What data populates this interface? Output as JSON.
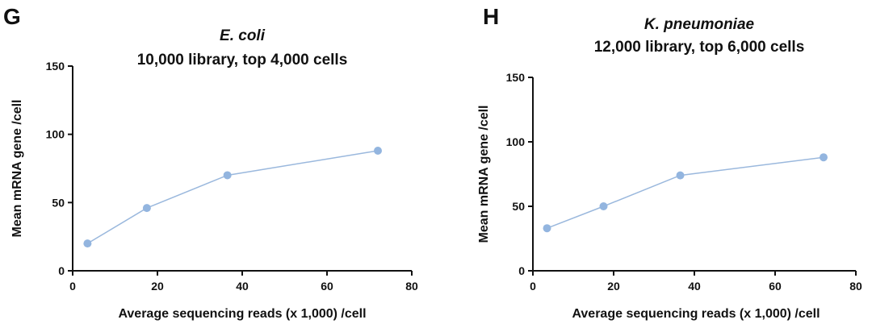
{
  "chart_data": [
    {
      "type": "line",
      "panel": "G",
      "title_organism": "E. coli",
      "title": "10,000 library, top 4,000 cells",
      "xlabel": "Average sequencing reads (x 1,000) /cell",
      "ylabel": "Mean mRNA gene /cell",
      "xlim": [
        0,
        80
      ],
      "ylim": [
        0,
        150
      ],
      "xticks": [
        0,
        20,
        40,
        60,
        80
      ],
      "yticks": [
        0,
        50,
        100,
        150
      ],
      "color": "#93b5df",
      "x": [
        3.5,
        17.5,
        36.5,
        72
      ],
      "y": [
        20,
        46,
        70,
        88
      ]
    },
    {
      "type": "line",
      "panel": "H",
      "title_organism": "K. pneumoniae",
      "title": "12,000 library, top 6,000 cells",
      "xlabel": "Average sequencing reads (x 1,000)  /cell",
      "ylabel": "Mean mRNA gene /cell",
      "xlim": [
        0,
        80
      ],
      "ylim": [
        0,
        150
      ],
      "xticks": [
        0,
        20,
        40,
        60,
        80
      ],
      "yticks": [
        0,
        50,
        100,
        150
      ],
      "color": "#93b5df",
      "x": [
        3.5,
        17.5,
        36.5,
        72
      ],
      "y": [
        33,
        50,
        74,
        88
      ]
    }
  ]
}
